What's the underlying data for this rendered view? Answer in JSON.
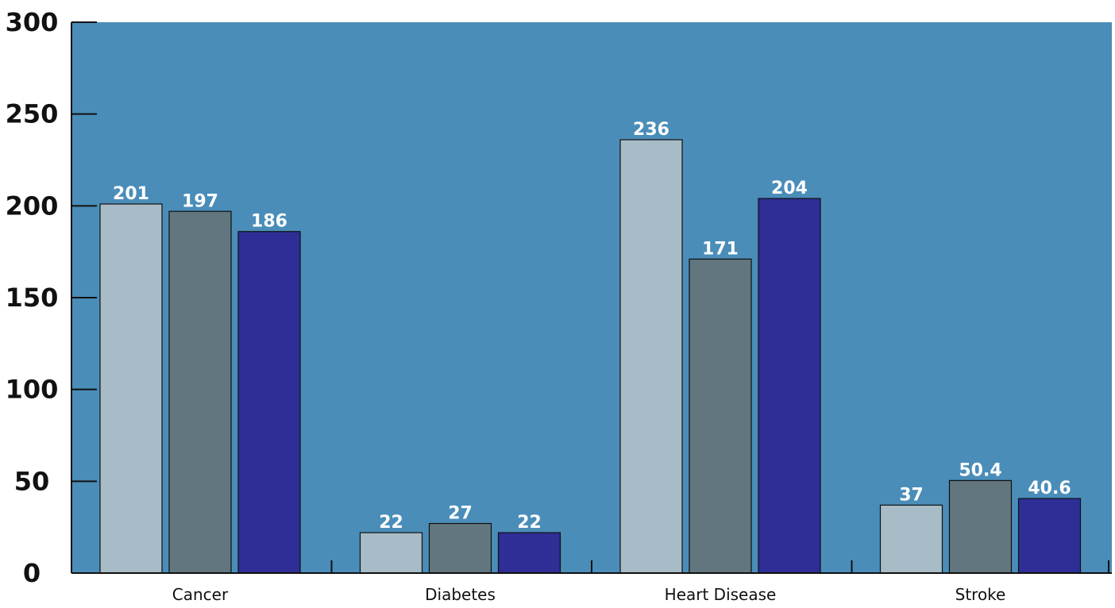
{
  "chart_data": {
    "type": "bar",
    "categories": [
      "Cancer",
      "Diabetes",
      "Heart Disease",
      "Stroke"
    ],
    "series": [
      {
        "values": [
          201,
          22,
          236,
          37
        ],
        "labels": [
          "201",
          "22",
          "236",
          "37"
        ],
        "color": "#a8bcc7"
      },
      {
        "values": [
          197,
          27,
          171,
          50.4
        ],
        "labels": [
          "197",
          "27",
          "171",
          "50.4"
        ],
        "color": "#61767f"
      },
      {
        "values": [
          186,
          22,
          204,
          40.6
        ],
        "labels": [
          "186",
          "22",
          "204",
          "40.6"
        ],
        "color": "#2e2e96"
      }
    ],
    "yticks": [
      0,
      50,
      100,
      150,
      200,
      250,
      300
    ],
    "ytick_labels": [
      "0",
      "50",
      "100",
      "150",
      "200",
      "250",
      "300"
    ],
    "ylim": [
      0,
      300
    ],
    "title": "",
    "xlabel": "",
    "ylabel": "",
    "grid": false,
    "plot_background": "#4a8db9",
    "border_color": "#111111"
  }
}
